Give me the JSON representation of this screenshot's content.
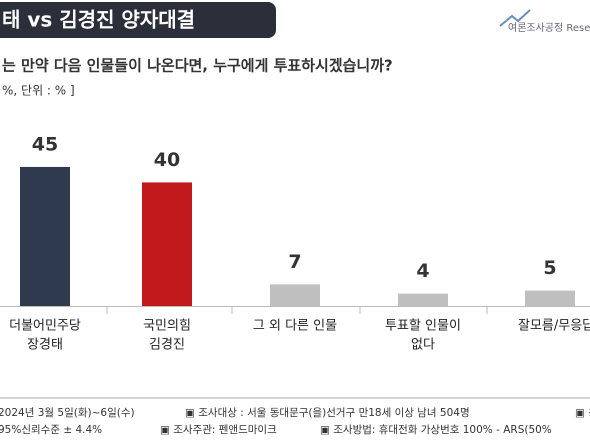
{
  "chart_data": {
    "type": "bar",
    "title": "태 vs 김경진 양자대결",
    "logo": "여론조사공정 Resea",
    "question": "는 만약 다음 인물들이 나온다면, 누구에게 투표하시겠습니까?",
    "unit_note": "%, 단위 : % ]",
    "categories": [
      [
        "더불어민주당",
        "장경태"
      ],
      [
        "국민의힘",
        "김경진"
      ],
      [
        "그 외 다른 인물"
      ],
      [
        "투표할 인물이",
        "없다"
      ],
      [
        "잘모름/무응답"
      ]
    ],
    "values": [
      45,
      40,
      7,
      4,
      5
    ],
    "colors": [
      "#2f3a4e",
      "#c0181b",
      "#bfbfbf",
      "#bfbfbf",
      "#bfbfbf"
    ],
    "footer": [
      [
        "2024년 3월 5일(화)~6일(수)",
        "▣ 조사대상 : 서울 동대문구(을)선거구 만18세 이상 남녀 504명",
        "▣ 응"
      ],
      [
        "95%신뢰수준 ± 4.4%",
        "▣ 조사주관: 펜앤드마이크",
        "▣ 조사방법: 휴대전화 가상번호 100% - ARS(50%"
      ]
    ]
  }
}
